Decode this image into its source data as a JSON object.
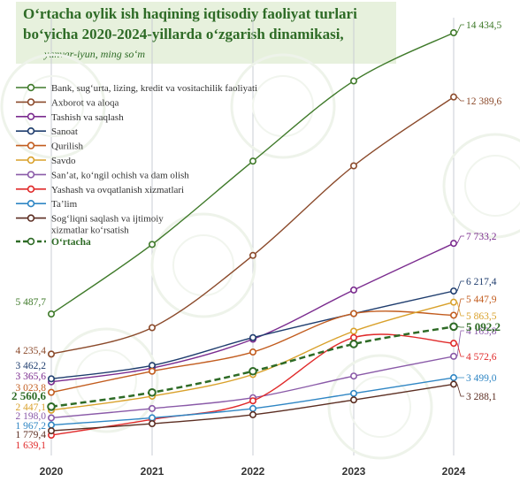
{
  "chart_data": {
    "type": "line",
    "title_line1": "O‘rtacha oylik ish haqining iqtisodiy faoliyat turlari",
    "title_line2": "bo‘yicha 2020-2024-yillarda o‘zgarish dinamikasi,",
    "subtitle": "yanvar-iyun, ming so‘m",
    "x": [
      "2020",
      "2021",
      "2022",
      "2023",
      "2024"
    ],
    "series": [
      {
        "name": "Bank, sug‘urta, lizing, kredit va vositachilik faoliyati",
        "color": "#3f7a2a",
        "start_label": "5 487,7",
        "end_label": "14 434,5",
        "values": [
          5487.7,
          7700,
          10350,
          12900,
          14434.5
        ]
      },
      {
        "name": "Axborot va aloqa",
        "color": "#8b4a2b",
        "start_label": "4 235,4",
        "end_label": "12 389,6",
        "values": [
          4235.4,
          5060,
          7350,
          10200,
          12389.6
        ]
      },
      {
        "name": "Tashish va saqlash",
        "color": "#7b2c8f",
        "start_label": "3 365,6",
        "end_label": "7 733,2",
        "values": [
          3365.6,
          3800,
          4700,
          6250,
          7733.2
        ]
      },
      {
        "name": "Sanoat",
        "color": "#1f3d6e",
        "start_label": "3 462,2",
        "end_label": "6 217,4",
        "values": [
          3462.2,
          3880,
          4750,
          5500,
          6217.4
        ]
      },
      {
        "name": "Qurilish",
        "color": "#c25c1e",
        "start_label": "3 023,8",
        "end_label": "5 447,9",
        "values": [
          3023.8,
          3700,
          4300,
          5500,
          5447.9
        ]
      },
      {
        "name": "Savdo",
        "color": "#d9a12b",
        "start_label": "2 447,1",
        "end_label": "5 863,5",
        "values": [
          2447.1,
          2900,
          3600,
          4950,
          5863.5
        ]
      },
      {
        "name": "San’at, ko‘ngil ochish va dam olish",
        "color": "#8a5aa8",
        "start_label": "2 198,0",
        "end_label": "4 165,8",
        "values": [
          2198.0,
          2500,
          2850,
          3550,
          4165.8
        ]
      },
      {
        "name": "Yashash va ovqatlanish xizmatlari",
        "color": "#e02a2a",
        "start_label": "1 639,1",
        "end_label": "4 572,6",
        "values": [
          1639.1,
          2150,
          2750,
          4750,
          4572.6
        ]
      },
      {
        "name": "Ta’lim",
        "color": "#2f86c4",
        "start_label": "1 967,2",
        "end_label": "3 499,0",
        "values": [
          1967.2,
          2200,
          2500,
          2990,
          3499.0
        ]
      },
      {
        "name": "Sog‘liqni saqlash va ijtimoiy xizmatlar ko‘rsatish",
        "color": "#5c2e22",
        "start_label": "1 779,4",
        "end_label": "3 288,1",
        "values": [
          1779.4,
          2010,
          2300,
          2780,
          3288.1
        ]
      },
      {
        "name": "O‘rtacha",
        "color": "#2e6b26",
        "dashed": true,
        "bold": true,
        "start_label": "2 560,6",
        "end_label": "5 092,2",
        "values": [
          2560.6,
          3020,
          3700,
          4550,
          5092.2
        ]
      }
    ],
    "legend_position": "top-left",
    "grid": "vertical"
  }
}
